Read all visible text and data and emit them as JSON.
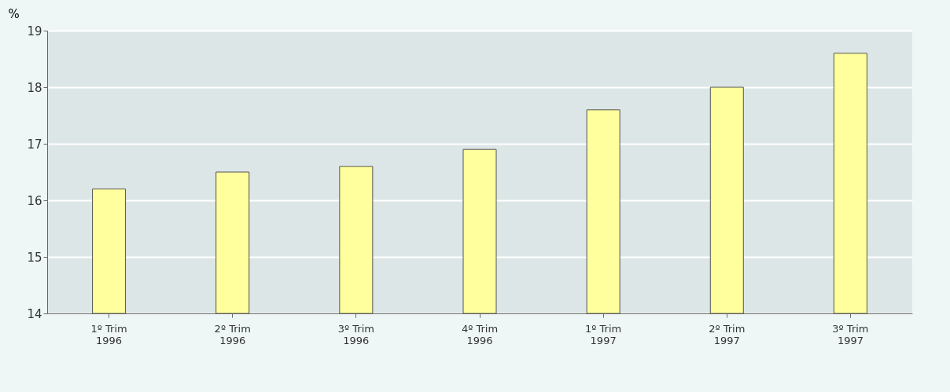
{
  "chart_data": {
    "type": "bar",
    "ylabel": "%",
    "categories": [
      "1º Trim 1996",
      "2º Trim 1996",
      "3º Trim 1996",
      "4º Trim 1996",
      "1º Trim 1997",
      "2º Trim 1997",
      "3º Trim 1997"
    ],
    "values": [
      16.2,
      16.5,
      16.6,
      16.9,
      17.6,
      18.0,
      18.6
    ],
    "color": "#ffff9e",
    "ylim": [
      14,
      19
    ],
    "yticks": [
      14,
      15,
      16,
      17,
      18,
      19
    ],
    "grid": "y"
  }
}
